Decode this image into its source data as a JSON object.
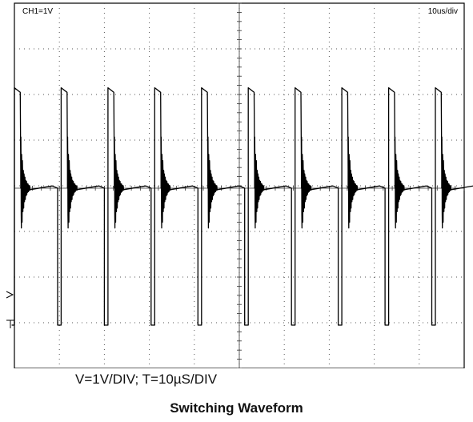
{
  "chart_data": {
    "type": "line",
    "title": "Switching Waveform",
    "scale_caption": "V=1V/DIV; T=10µS/DIV",
    "channel_label": "CH1=1V",
    "timebase_label": "10us/div",
    "x_unit": "us",
    "y_unit": "V",
    "xlim": [
      0,
      100
    ],
    "ylim": [
      -4,
      4
    ],
    "grid": true,
    "period_us": 10.4,
    "first_rise_us": 0.0,
    "high_duration_us": 1.3,
    "series": [
      {
        "values_note": "",
        "x": [
          0,
          1.3,
          1.35,
          2.0,
          2.6,
          3.3,
          3.6,
          3.65,
          10.4,
          11.7,
          11.75,
          12.4,
          13.0,
          13.7,
          14.0,
          14.05,
          20.8,
          22.1,
          22.15,
          22.8,
          23.4,
          24.1,
          24.4,
          24.45,
          31.2,
          32.5,
          32.55,
          33.2,
          33.8,
          34.5,
          34.8,
          34.85,
          41.6,
          42.9,
          42.95,
          43.6,
          44.2,
          44.9,
          45.2,
          45.25,
          52.0,
          53.3,
          53.35,
          54.0,
          54.6,
          55.3,
          55.6,
          55.65,
          62.4,
          63.7,
          63.75,
          64.4,
          65.0,
          65.7,
          66.0,
          66.05,
          72.8,
          74.1,
          74.15,
          74.8,
          75.4,
          76.1,
          76.4,
          76.45,
          83.2,
          84.5,
          84.55,
          85.2,
          85.8,
          86.5,
          86.8,
          86.85,
          93.6,
          94.9,
          94.95,
          95.6,
          96.2,
          96.9,
          97.2,
          97.25
        ],
        "y": [
          2.2,
          2.1,
          1.2,
          -0.2,
          -0.3,
          0.1,
          0.0,
          -3.0,
          2.2,
          2.1,
          1.2,
          -0.2,
          -0.3,
          0.1,
          0.0,
          -3.0,
          2.2,
          2.1,
          1.2,
          -0.2,
          -0.3,
          0.1,
          0.0,
          -3.0,
          2.2,
          2.1,
          1.2,
          -0.2,
          -0.3,
          0.1,
          0.0,
          -3.0,
          2.2,
          2.1,
          1.2,
          -0.2,
          -0.3,
          0.1,
          0.0,
          -3.0,
          2.2,
          2.1,
          1.2,
          -0.2,
          -0.3,
          0.1,
          0.0,
          -3.0,
          2.2,
          2.1,
          1.2,
          -0.2,
          -0.3,
          0.1,
          0.0,
          -3.0,
          2.2,
          2.1,
          1.2,
          -0.2,
          -0.3,
          0.1,
          0.0,
          -3.0,
          2.2,
          2.1,
          1.2,
          -0.2,
          -0.3,
          0.1,
          0.0,
          -3.0,
          2.2,
          2.1,
          1.2,
          -0.2,
          -0.3,
          0.1,
          0.0,
          -3.0
        ]
      }
    ]
  },
  "colors": {
    "trace": "#000000",
    "grid": "#555555",
    "background": "#ffffff"
  }
}
